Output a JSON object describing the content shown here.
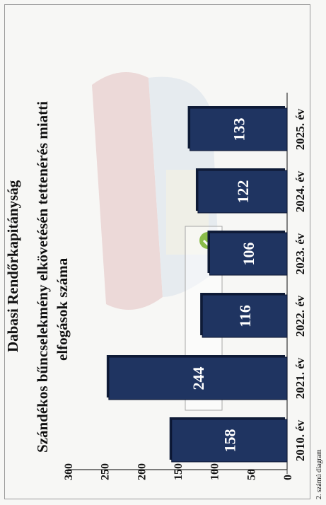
{
  "header": {
    "organization": "Dabasi Rendőrkapitányság",
    "title_line1": "Szándékos bűncselekmény elkövetésén tettenérés miatti",
    "title_line2": "elfogások száma",
    "footnote": "2. számú diagram"
  },
  "colors": {
    "bar": "#1f3461",
    "bar_edge": "#0f1c38",
    "accent_green": "#79b42e"
  },
  "chart_data": {
    "type": "bar",
    "orientation": "rotated-90-ccw",
    "title": "Szándékos bűncselekmény elkövetésén tettenérés miatti elfogások száma",
    "categories": [
      "2010. év",
      "2021. év",
      "2022. év",
      "2023. év",
      "2024. év",
      "2025. év"
    ],
    "values": [
      158,
      244,
      116,
      106,
      122,
      133
    ],
    "ylim": [
      0,
      300
    ],
    "yticks": [
      0,
      50,
      100,
      150,
      200,
      250,
      300
    ],
    "grid": false,
    "legend": "none"
  }
}
